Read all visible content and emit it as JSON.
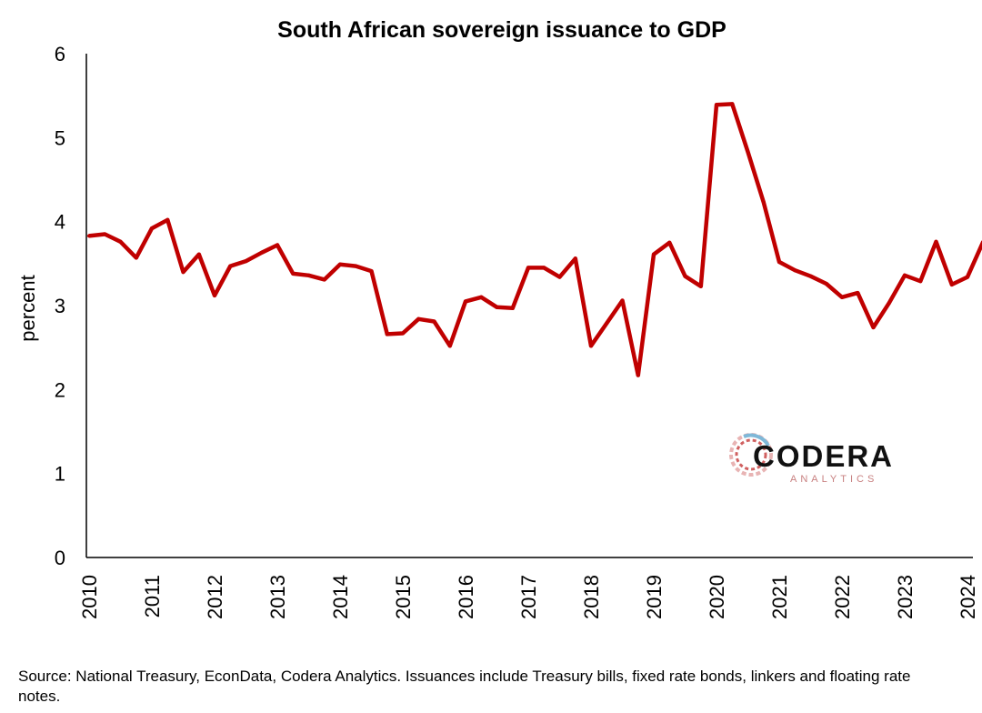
{
  "chart_data": {
    "type": "line",
    "title": "South African sovereign issuance to GDP",
    "xlabel": "",
    "ylabel": "percent",
    "ylim": [
      0,
      6
    ],
    "yticks": [
      "0",
      "1",
      "2",
      "3",
      "4",
      "5",
      "6"
    ],
    "xticks": [
      "2010",
      "2011",
      "2012",
      "2013",
      "2014",
      "2015",
      "2016",
      "2017",
      "2018",
      "2019",
      "2020",
      "2021",
      "2022",
      "2023",
      "2024"
    ],
    "grid": false,
    "legend": "none",
    "series": [
      {
        "color": "#c00000",
        "x": [
          "2010Q1",
          "2010Q2",
          "2010Q3",
          "2010Q4",
          "2011Q1",
          "2011Q2",
          "2011Q3",
          "2011Q4",
          "2012Q1",
          "2012Q2",
          "2012Q3",
          "2012Q4",
          "2013Q1",
          "2013Q2",
          "2013Q3",
          "2013Q4",
          "2014Q1",
          "2014Q2",
          "2014Q3",
          "2014Q4",
          "2015Q1",
          "2015Q2",
          "2015Q3",
          "2015Q4",
          "2016Q1",
          "2016Q2",
          "2016Q3",
          "2016Q4",
          "2017Q1",
          "2017Q2",
          "2017Q3",
          "2017Q4",
          "2018Q1",
          "2018Q2",
          "2018Q3",
          "2018Q4",
          "2019Q1",
          "2019Q2",
          "2019Q3",
          "2019Q4",
          "2020Q1",
          "2020Q2",
          "2020Q3",
          "2020Q4",
          "2021Q1",
          "2021Q2",
          "2021Q3",
          "2021Q4",
          "2022Q1",
          "2022Q2",
          "2022Q3",
          "2022Q4",
          "2023Q1",
          "2023Q2",
          "2023Q3",
          "2023Q4",
          "2024Q1",
          "2024Q2"
        ],
        "values": [
          3.83,
          3.85,
          3.76,
          3.57,
          3.92,
          4.02,
          3.4,
          3.61,
          3.12,
          3.47,
          3.53,
          3.63,
          3.72,
          3.38,
          3.36,
          3.31,
          3.49,
          3.47,
          3.41,
          2.66,
          2.67,
          2.84,
          2.81,
          2.52,
          3.05,
          3.1,
          2.98,
          2.97,
          3.45,
          3.45,
          3.34,
          3.56,
          2.52,
          2.79,
          3.06,
          2.17,
          3.61,
          3.75,
          3.35,
          3.23,
          5.39,
          5.4,
          4.83,
          4.23,
          3.52,
          3.42,
          3.35,
          3.26,
          3.1,
          3.15,
          2.74,
          3.03,
          3.36,
          3.29,
          3.76,
          3.25,
          3.34,
          3.76
        ]
      }
    ]
  },
  "logo": {
    "word": "CODERA",
    "sub": "ANALYTICS"
  },
  "footer": {
    "source": "Source: National Treasury, EconData, Codera Analytics. Issuances include Treasury bills, fixed rate bonds, linkers and floating rate notes."
  }
}
